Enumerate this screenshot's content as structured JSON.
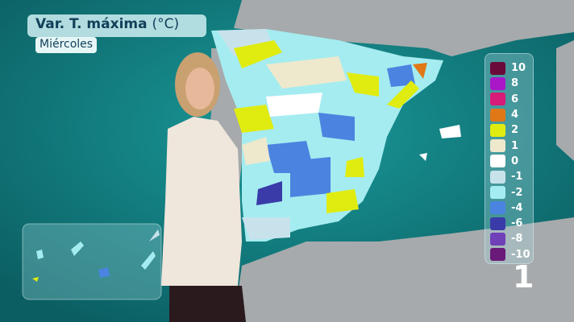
{
  "title": {
    "main": "Var. T. máxima",
    "unit": "(°C)",
    "day": "Miércoles"
  },
  "legend": [
    {
      "label": "10",
      "color": "#6a0a3a"
    },
    {
      "label": "8",
      "color": "#a818c8"
    },
    {
      "label": "6",
      "color": "#d81a78"
    },
    {
      "label": "4",
      "color": "#e07818"
    },
    {
      "label": "2",
      "color": "#e0ec10"
    },
    {
      "label": "1",
      "color": "#eee8cc"
    },
    {
      "label": "0",
      "color": "#ffffff"
    },
    {
      "label": "-1",
      "color": "#c8e2ec"
    },
    {
      "label": "-2",
      "color": "#a4ecf0"
    },
    {
      "label": "-4",
      "color": "#4a84e0"
    },
    {
      "label": "-6",
      "color": "#3a3aa8"
    },
    {
      "label": "-8",
      "color": "#7040b8"
    },
    {
      "label": "-10",
      "color": "#6a1a78"
    }
  ],
  "page_number": "1",
  "colors": {
    "sea": "#0f7a7c",
    "land_foreign": "#a6aaac"
  }
}
